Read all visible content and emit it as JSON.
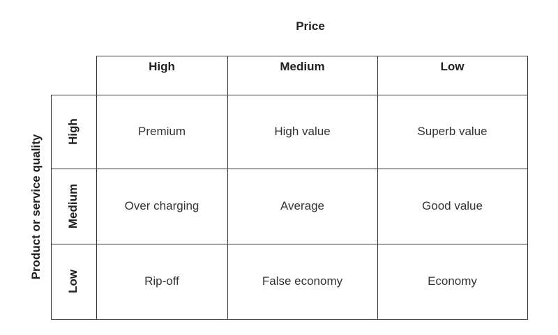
{
  "title": "Price",
  "y_axis_label": "Product or service quality",
  "columns": [
    "High",
    "Medium",
    "Low"
  ],
  "rows": [
    {
      "label": "High",
      "cells": [
        "Premium",
        "High value",
        "Superb value"
      ]
    },
    {
      "label": "Medium",
      "cells": [
        "Over charging",
        "Average",
        "Good value"
      ]
    },
    {
      "label": "Low",
      "cells": [
        "Rip-off",
        "False economy",
        "Economy"
      ]
    }
  ]
}
